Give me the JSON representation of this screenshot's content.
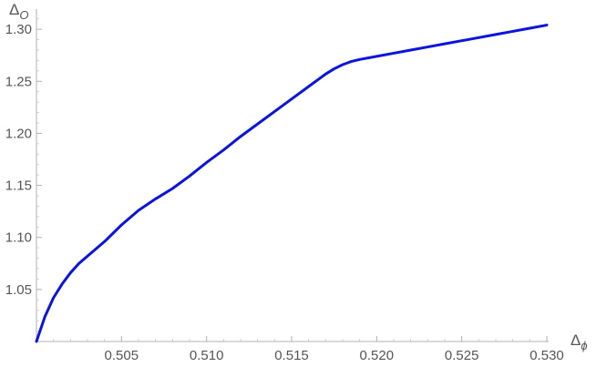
{
  "chart_data": {
    "type": "line",
    "title": "",
    "xlabel": {
      "main": "Δ",
      "sub": "ϕ"
    },
    "ylabel": {
      "main": "Δ",
      "sub": "O"
    },
    "xlim": [
      0.5,
      0.53
    ],
    "ylim": [
      1.0,
      1.315
    ],
    "x_ticks": [
      {
        "value": 0.505,
        "label": "0.505"
      },
      {
        "value": 0.51,
        "label": "0.510"
      },
      {
        "value": 0.515,
        "label": "0.515"
      },
      {
        "value": 0.52,
        "label": "0.520"
      },
      {
        "value": 0.525,
        "label": "0.525"
      },
      {
        "value": 0.53,
        "label": "0.530"
      }
    ],
    "y_ticks": [
      {
        "value": 1.05,
        "label": "1.05"
      },
      {
        "value": 1.1,
        "label": "1.10"
      },
      {
        "value": 1.15,
        "label": "1.15"
      },
      {
        "value": 1.2,
        "label": "1.20"
      },
      {
        "value": 1.25,
        "label": "1.25"
      },
      {
        "value": 1.3,
        "label": "1.30"
      }
    ],
    "grid": false,
    "series": [
      {
        "color": "#0a14dc",
        "x": [
          0.5,
          0.5005,
          0.501,
          0.5015,
          0.502,
          0.5025,
          0.503,
          0.504,
          0.505,
          0.506,
          0.507,
          0.508,
          0.509,
          0.51,
          0.511,
          0.512,
          0.513,
          0.514,
          0.515,
          0.516,
          0.517,
          0.5175,
          0.518,
          0.5185,
          0.519,
          0.52,
          0.521,
          0.522,
          0.523,
          0.524,
          0.525,
          0.526,
          0.527,
          0.528,
          0.529,
          0.53
        ],
        "y": [
          1.0,
          1.024,
          1.042,
          1.055,
          1.066,
          1.075,
          1.082,
          1.096,
          1.112,
          1.126,
          1.137,
          1.147,
          1.159,
          1.172,
          1.184,
          1.197,
          1.209,
          1.221,
          1.233,
          1.245,
          1.257,
          1.262,
          1.266,
          1.269,
          1.271,
          1.274,
          1.277,
          1.28,
          1.283,
          1.286,
          1.289,
          1.292,
          1.295,
          1.298,
          1.301,
          1.304
        ]
      }
    ]
  }
}
